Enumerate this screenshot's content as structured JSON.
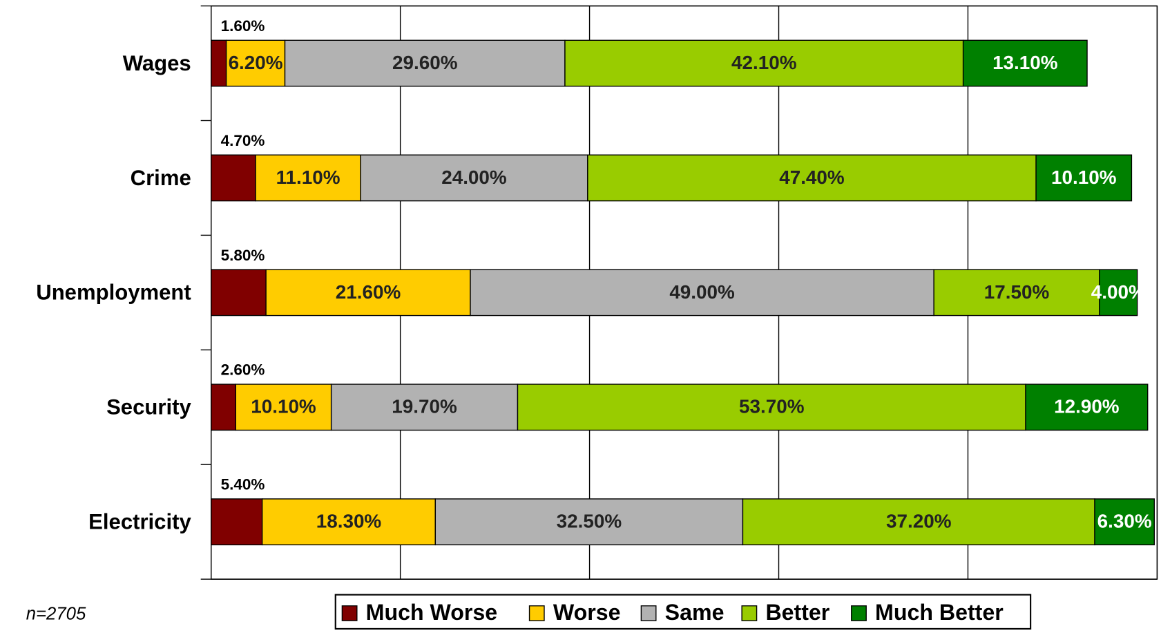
{
  "chart_data": {
    "type": "stacked_barh",
    "categories": [
      "Wages",
      "Crime",
      "Unemployment",
      "Security",
      "Electricity"
    ],
    "series": [
      {
        "name": "Much Worse",
        "color": "#800000",
        "values": [
          1.6,
          4.7,
          5.8,
          2.6,
          5.4
        ],
        "value_labels": [
          "1.60%",
          "4.70%",
          "5.80%",
          "2.60%",
          "5.40%"
        ]
      },
      {
        "name": "Worse",
        "color": "#FFCC00",
        "values": [
          6.2,
          11.1,
          21.6,
          10.1,
          18.3
        ],
        "value_labels": [
          "6.20%",
          "11.10%",
          "21.60%",
          "10.10%",
          "18.30%"
        ]
      },
      {
        "name": "Same",
        "color": "#B2B2B2",
        "values": [
          29.6,
          24.0,
          49.0,
          19.7,
          32.5
        ],
        "value_labels": [
          "29.60%",
          "24.00%",
          "49.00%",
          "19.70%",
          "32.50%"
        ]
      },
      {
        "name": "Better",
        "color": "#99CC00",
        "values": [
          42.1,
          47.4,
          17.5,
          53.7,
          37.2
        ],
        "value_labels": [
          "42.10%",
          "47.40%",
          "17.50%",
          "53.70%",
          "37.20%"
        ]
      },
      {
        "name": "Much Better",
        "color": "#008000",
        "values": [
          13.1,
          10.1,
          4.0,
          12.9,
          6.3
        ],
        "value_labels": [
          "13.10%",
          "10.10%",
          "4.00%",
          "12.90%",
          "6.30%"
        ]
      }
    ],
    "xlim": [
      0,
      100
    ],
    "xticks": [
      0,
      20,
      40,
      60,
      80,
      100
    ],
    "grid": true,
    "annotation": "n=2705"
  }
}
